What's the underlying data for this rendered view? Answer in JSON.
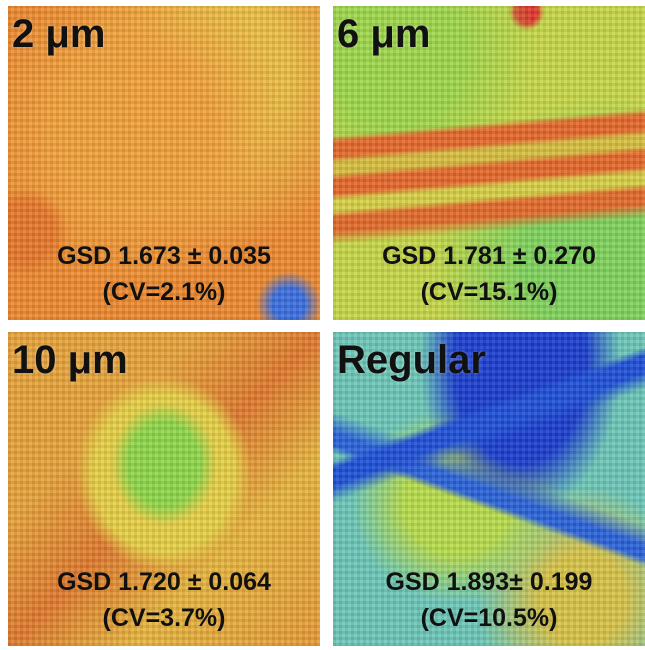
{
  "panels": [
    {
      "label": "2 μm",
      "gsd": "GSD 1.673 ± 0.035",
      "cv": "(CV=2.1%)"
    },
    {
      "label": "6 μm",
      "gsd": "GSD 1.781 ± 0.270",
      "cv": "(CV=15.1%)"
    },
    {
      "label": "10 μm",
      "gsd": "GSD 1.720 ± 0.064",
      "cv": "(CV=3.7%)"
    },
    {
      "label": "Regular",
      "gsd": "GSD 1.893± 0.199",
      "cv": "(CV=10.5%)"
    }
  ]
}
